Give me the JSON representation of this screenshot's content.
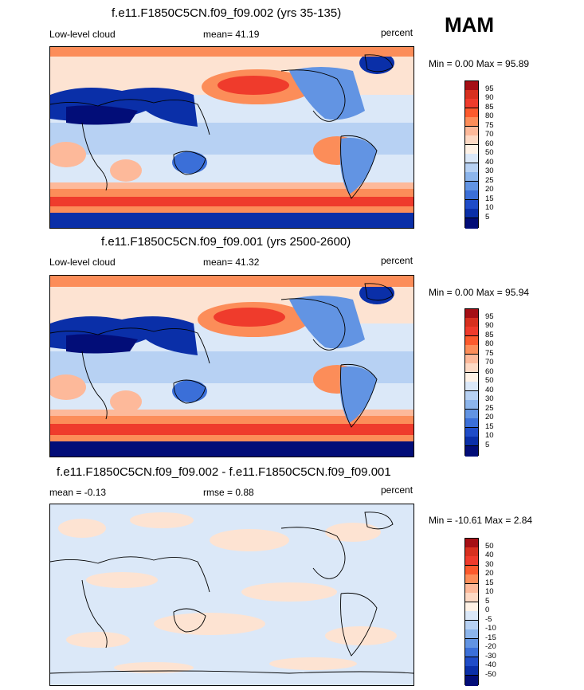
{
  "season": "MAM",
  "panels": [
    {
      "title": "f.e11.F1850C5CN.f09_f09.002 (yrs 35-135)",
      "left_label": "Low-level cloud",
      "center_label": "mean=  41.19",
      "right_label": "percent",
      "minmax": "Min =   0.00 Max =  95.89",
      "colorbar": {
        "levels": [
          "95",
          "90",
          "85",
          "80",
          "75",
          "70",
          "60",
          "50",
          "40",
          "30",
          "25",
          "20",
          "15",
          "10",
          "5"
        ],
        "colors": [
          "#a50f15",
          "#d7301f",
          "#ef3b2c",
          "#fc5a2d",
          "#fc8d59",
          "#fdb99a",
          "#fdd9c4",
          "#fff2e6",
          "#dbe8f8",
          "#b7d1f3",
          "#8cb5ec",
          "#6294e3",
          "#3b6fd8",
          "#1f4cc8",
          "#0a2fa8",
          "#020d78"
        ]
      }
    },
    {
      "title": "f.e11.F1850C5CN.f09_f09.001 (yrs 2500-2600)",
      "left_label": "Low-level cloud",
      "center_label": "mean=  41.32",
      "right_label": "percent",
      "minmax": "Min =   0.00 Max =  95.94",
      "colorbar": {
        "levels": [
          "95",
          "90",
          "85",
          "80",
          "75",
          "70",
          "60",
          "50",
          "40",
          "30",
          "25",
          "20",
          "15",
          "10",
          "5"
        ],
        "colors": [
          "#a50f15",
          "#d7301f",
          "#ef3b2c",
          "#fc5a2d",
          "#fc8d59",
          "#fdb99a",
          "#fdd9c4",
          "#fff2e6",
          "#dbe8f8",
          "#b7d1f3",
          "#8cb5ec",
          "#6294e3",
          "#3b6fd8",
          "#1f4cc8",
          "#0a2fa8",
          "#020d78"
        ]
      }
    },
    {
      "title": "f.e11.F1850C5CN.f09_f09.002 - f.e11.F1850C5CN.f09_f09.001",
      "left_label": "mean =  -0.13",
      "center_label": "rmse =   0.88",
      "right_label": "percent",
      "minmax": "Min = -10.61 Max =   2.84",
      "colorbar": {
        "levels": [
          "50",
          "40",
          "30",
          "20",
          "15",
          "10",
          "5",
          "0",
          "-5",
          "-10",
          "-15",
          "-20",
          "-30",
          "-40",
          "-50"
        ],
        "colors": [
          "#a50f15",
          "#d7301f",
          "#ef3b2c",
          "#fc5a2d",
          "#fc8d59",
          "#fdb99a",
          "#fdd9c4",
          "#fff2e6",
          "#dbe8f8",
          "#b7d1f3",
          "#8cb5ec",
          "#6294e3",
          "#3b6fd8",
          "#1f4cc8",
          "#0a2fa8",
          "#020d78"
        ]
      }
    }
  ]
}
